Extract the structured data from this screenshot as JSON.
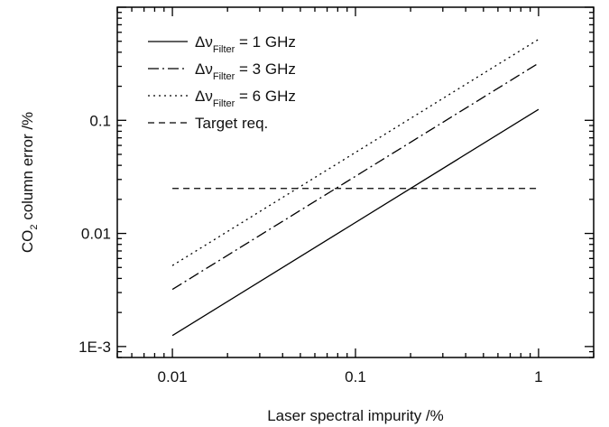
{
  "chart_data": {
    "type": "line",
    "xlabel": "Laser spectral impurity /%",
    "ylabel_main": "CO",
    "ylabel_sub": "2",
    "ylabel_rest": " column error /%",
    "xscale": "log",
    "yscale": "log",
    "xlim": [
      0.005,
      2
    ],
    "ylim": [
      0.0008,
      1
    ],
    "x_ticks": [
      {
        "value": 0.01,
        "label": "0.01"
      },
      {
        "value": 0.1,
        "label": "0.1"
      },
      {
        "value": 1,
        "label": "1"
      }
    ],
    "y_ticks": [
      {
        "value": 0.001,
        "label": "1E-3"
      },
      {
        "value": 0.01,
        "label": "0.01"
      },
      {
        "value": 0.1,
        "label": "0.1"
      }
    ],
    "grid": false,
    "legend_position": "top-left",
    "series": [
      {
        "symbol": "Δν",
        "sub": "Filter",
        "value_text": " = 1 GHz",
        "dash": "solid",
        "x": [
          0.01,
          1
        ],
        "y": [
          0.00125,
          0.125
        ]
      },
      {
        "symbol": "Δν",
        "sub": "Filter",
        "value_text": " = 3 GHz",
        "dash": "dashdot",
        "x": [
          0.01,
          1
        ],
        "y": [
          0.0032,
          0.32
        ]
      },
      {
        "symbol": "Δν",
        "sub": "Filter",
        "value_text": " = 6 GHz",
        "dash": "dotted",
        "x": [
          0.01,
          1
        ],
        "y": [
          0.0052,
          0.52
        ]
      },
      {
        "label": "Target req.",
        "dash": "dashed",
        "x": [
          0.01,
          1
        ],
        "y": [
          0.025,
          0.025
        ]
      }
    ]
  }
}
